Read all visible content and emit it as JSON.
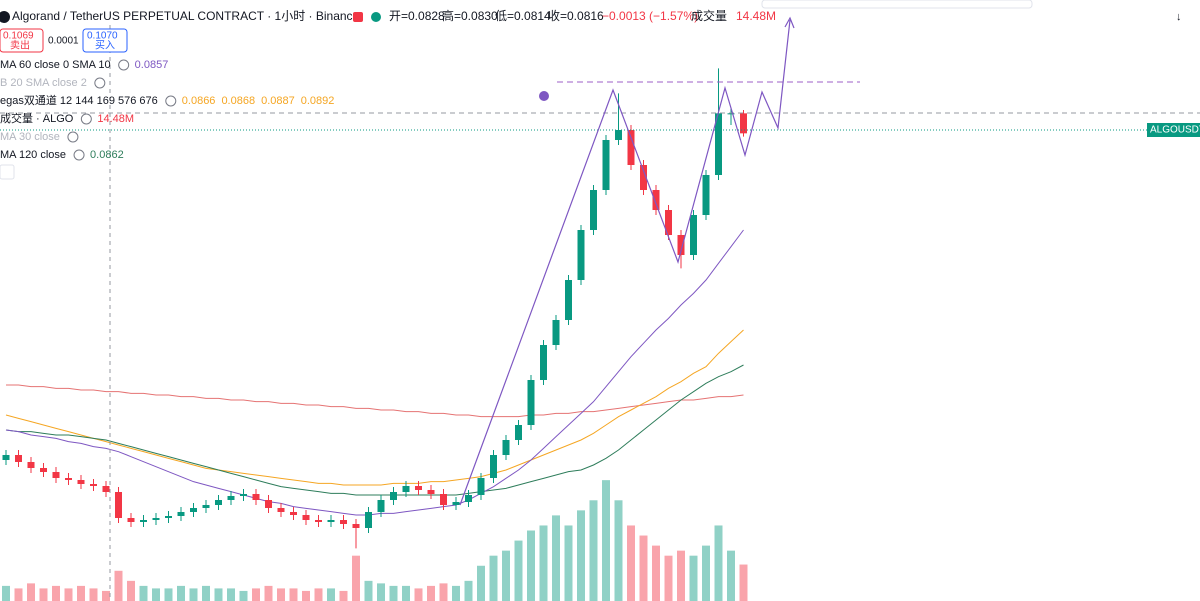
{
  "header": {
    "symbol": "Algorand / TetherUS PERPETUAL CONTRACT · 1小时 · Binance",
    "quote": [
      "开=0.0828",
      "高=0.0830",
      "低=0.0814",
      "收=0.0816",
      "−0.0013 (−1.57%)",
      "成交量",
      "14.48M"
    ],
    "sell": {
      "price": "0.1069",
      "label": "卖出"
    },
    "spread": "0.0001",
    "buy": {
      "price": "0.1070",
      "label": "买入"
    },
    "price_tag": "ALGOUSDT"
  },
  "legend": [
    {
      "name": "MA 60 close 0 SMA 10",
      "values": [
        "0.0857"
      ]
    },
    {
      "name": "B 20 SMA close 2",
      "values": []
    },
    {
      "name": "egas双通道 12 144 169 576 676",
      "values": [
        "0.0866",
        "0.0868",
        "0.0887",
        "0.0892"
      ]
    },
    {
      "name": "成交量 · ALGO",
      "values": [
        "14.48M"
      ]
    },
    {
      "name": "MA 30 close",
      "values": []
    },
    {
      "name": "MA 120 close",
      "values": [
        "0.0862"
      ]
    }
  ],
  "chart_data": {
    "type": "candlestick",
    "ylim": [
      0.0572,
      0.089
    ],
    "up_color": "#089981",
    "down_color": "#f23645",
    "open": [
      0.062,
      0.0623,
      0.06188,
      0.06152,
      0.06128,
      0.06092,
      0.0608,
      0.06056,
      0.06044,
      0.06008,
      0.05852,
      0.05828,
      0.0584,
      0.05852,
      0.05864,
      0.05888,
      0.05912,
      0.0593,
      0.0596,
      0.05984,
      0.05996,
      0.0596,
      0.05912,
      0.05888,
      0.0587,
      0.0584,
      0.05828,
      0.0584,
      0.05816,
      0.05792,
      0.05888,
      0.0596,
      0.06008,
      0.06044,
      0.0602,
      0.05996,
      0.0593,
      0.05948,
      0.0599,
      0.06092,
      0.0623,
      0.0632,
      0.0641,
      0.0668,
      0.0689,
      0.0704,
      0.0728,
      0.0758,
      0.0782,
      0.0812,
      0.0818,
      0.0797,
      0.0782,
      0.077,
      0.0755,
      0.0743,
      0.0767,
      0.0791,
      0.0828,
      0.0828
    ],
    "high": [
      0.0626,
      0.0626,
      0.06218,
      0.06182,
      0.06158,
      0.06122,
      0.0611,
      0.06086,
      0.06074,
      0.06038,
      0.05882,
      0.0587,
      0.05882,
      0.05894,
      0.05918,
      0.05942,
      0.0596,
      0.0599,
      0.06014,
      0.06026,
      0.06026,
      0.0599,
      0.05942,
      0.05918,
      0.059,
      0.0587,
      0.0587,
      0.0587,
      0.05846,
      0.05918,
      0.0599,
      0.06038,
      0.06074,
      0.06074,
      0.0605,
      0.06026,
      0.05978,
      0.0602,
      0.06122,
      0.0626,
      0.0635,
      0.0644,
      0.0671,
      0.0692,
      0.0707,
      0.0731,
      0.0761,
      0.0785,
      0.0815,
      0.084,
      0.0821,
      0.08,
      0.0785,
      0.0773,
      0.0758,
      0.077,
      0.0794,
      0.0855,
      0.0831,
      0.083
    ],
    "low": [
      0.0617,
      0.06158,
      0.06122,
      0.06098,
      0.06062,
      0.0605,
      0.06026,
      0.06014,
      0.05978,
      0.05822,
      0.05798,
      0.05798,
      0.0581,
      0.05822,
      0.05834,
      0.05858,
      0.05882,
      0.059,
      0.0593,
      0.05954,
      0.0593,
      0.05882,
      0.05858,
      0.0584,
      0.0581,
      0.05798,
      0.05798,
      0.05786,
      0.0567,
      0.05762,
      0.05858,
      0.0593,
      0.05978,
      0.0599,
      0.05966,
      0.059,
      0.059,
      0.05918,
      0.0596,
      0.06062,
      0.062,
      0.0629,
      0.0638,
      0.0665,
      0.0686,
      0.0701,
      0.0725,
      0.0755,
      0.0779,
      0.0809,
      0.0794,
      0.0779,
      0.0767,
      0.0752,
      0.0735,
      0.074,
      0.0764,
      0.0788,
      0.0821,
      0.0814
    ],
    "close": [
      0.0623,
      0.06188,
      0.06152,
      0.06128,
      0.06092,
      0.0608,
      0.06056,
      0.06044,
      0.06008,
      0.05852,
      0.05828,
      0.0584,
      0.05852,
      0.05864,
      0.05888,
      0.05912,
      0.0593,
      0.0596,
      0.05984,
      0.05996,
      0.0596,
      0.05912,
      0.05888,
      0.0587,
      0.0584,
      0.05828,
      0.0584,
      0.05816,
      0.05792,
      0.05888,
      0.0596,
      0.06008,
      0.06044,
      0.0602,
      0.05996,
      0.0593,
      0.05948,
      0.0599,
      0.06092,
      0.0623,
      0.0632,
      0.0641,
      0.0668,
      0.0689,
      0.0704,
      0.0728,
      0.0758,
      0.0782,
      0.0812,
      0.0818,
      0.0797,
      0.0782,
      0.077,
      0.0755,
      0.0743,
      0.0767,
      0.0791,
      0.0828,
      0.0828,
      0.0816
    ],
    "volume": [
      6,
      5,
      7,
      5,
      6,
      5,
      6,
      5,
      4,
      12,
      8,
      6,
      5,
      5,
      6,
      5,
      6,
      5,
      5,
      4,
      5,
      6,
      5,
      5,
      4,
      5,
      5,
      4,
      18,
      8,
      7,
      6,
      6,
      5,
      6,
      7,
      6,
      8,
      14,
      18,
      20,
      24,
      28,
      30,
      34,
      30,
      36,
      40,
      48,
      40,
      30,
      26,
      22,
      18,
      20,
      18,
      22,
      30,
      20,
      14.48
    ],
    "vlim": [
      0,
      56
    ],
    "series": [
      {
        "color": "#e57373",
        "values": [
          0.0665,
          0.0665,
          0.0664,
          0.0664,
          0.0663,
          0.0663,
          0.0662,
          0.0662,
          0.0661,
          0.0661,
          0.066,
          0.066,
          0.0659,
          0.0659,
          0.0658,
          0.0658,
          0.0657,
          0.0657,
          0.0656,
          0.0656,
          0.0655,
          0.0655,
          0.0654,
          0.0654,
          0.0653,
          0.0653,
          0.0652,
          0.0652,
          0.0651,
          0.0651,
          0.065,
          0.065,
          0.0649,
          0.0649,
          0.0648,
          0.0648,
          0.0647,
          0.0647,
          0.0646,
          0.0646,
          0.0646,
          0.0646,
          0.0647,
          0.0647,
          0.0648,
          0.0648,
          0.0649,
          0.0649,
          0.065,
          0.0651,
          0.0652,
          0.0653,
          0.0654,
          0.0655,
          0.0656,
          0.0656,
          0.0657,
          0.0658,
          0.0658,
          0.0659
        ]
      },
      {
        "color": "#f5a623",
        "values": [
          0.0647,
          0.0645,
          0.0643,
          0.0641,
          0.0639,
          0.0637,
          0.0635,
          0.0633,
          0.0631,
          0.0629,
          0.0627,
          0.0625,
          0.0623,
          0.0621,
          0.0619,
          0.0617,
          0.0615,
          0.0614,
          0.0613,
          0.0612,
          0.0611,
          0.061,
          0.0609,
          0.0608,
          0.0607,
          0.0606,
          0.0606,
          0.0605,
          0.0605,
          0.0605,
          0.0605,
          0.0606,
          0.0606,
          0.0606,
          0.0607,
          0.0607,
          0.0608,
          0.0609,
          0.061,
          0.0612,
          0.0614,
          0.0617,
          0.062,
          0.0623,
          0.0626,
          0.0629,
          0.0632,
          0.0636,
          0.0641,
          0.0646,
          0.065,
          0.0654,
          0.0658,
          0.0663,
          0.0667,
          0.0672,
          0.0676,
          0.0684,
          0.0691,
          0.0698
        ]
      },
      {
        "color": "#2e7d5b",
        "values": [
          0.0638,
          0.0637,
          0.0637,
          0.0636,
          0.0635,
          0.0635,
          0.0634,
          0.0633,
          0.0632,
          0.063,
          0.0628,
          0.0626,
          0.0624,
          0.0622,
          0.062,
          0.0618,
          0.0616,
          0.0614,
          0.0612,
          0.061,
          0.0608,
          0.0606,
          0.0604,
          0.0603,
          0.0602,
          0.0601,
          0.06,
          0.06,
          0.0599,
          0.0599,
          0.0599,
          0.0599,
          0.0599,
          0.0599,
          0.0599,
          0.0599,
          0.0599,
          0.06,
          0.0601,
          0.0602,
          0.0603,
          0.0605,
          0.0607,
          0.0609,
          0.0611,
          0.0613,
          0.0614,
          0.0617,
          0.0621,
          0.0626,
          0.0632,
          0.0638,
          0.0644,
          0.065,
          0.0656,
          0.0661,
          0.0666,
          0.067,
          0.0673,
          0.0677
        ]
      },
      {
        "color": "#7e57c2",
        "values": [
          0.0638,
          0.0637,
          0.0635,
          0.0634,
          0.0633,
          0.0631,
          0.063,
          0.0628,
          0.0627,
          0.0625,
          0.0622,
          0.0619,
          0.0616,
          0.0613,
          0.061,
          0.0607,
          0.0605,
          0.0603,
          0.0601,
          0.0599,
          0.0597,
          0.0595,
          0.0594,
          0.0592,
          0.0591,
          0.059,
          0.0589,
          0.0588,
          0.0587,
          0.0587,
          0.0588,
          0.0588,
          0.0589,
          0.059,
          0.0591,
          0.0592,
          0.0593,
          0.0596,
          0.06,
          0.0604,
          0.0609,
          0.0614,
          0.062,
          0.0627,
          0.0634,
          0.0641,
          0.0648,
          0.0655,
          0.0664,
          0.0673,
          0.0682,
          0.069,
          0.0698,
          0.0705,
          0.0713,
          0.072,
          0.0728,
          0.0738,
          0.0748,
          0.0758
        ]
      }
    ]
  }
}
